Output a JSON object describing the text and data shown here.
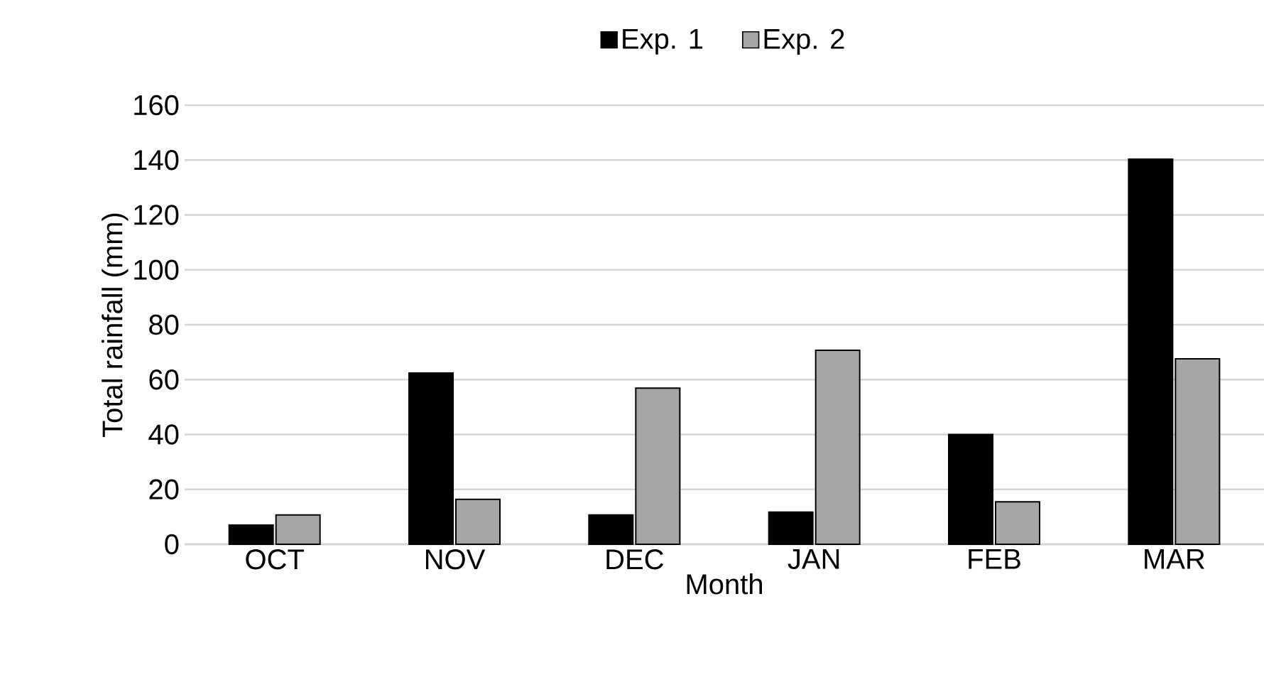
{
  "chart_data": {
    "type": "bar",
    "xlabel": "Month",
    "ylabel": "Total rainfall (mm)",
    "categories": [
      "OCT",
      "NOV",
      "DEC",
      "JAN",
      "FEB",
      "MAR"
    ],
    "series": [
      {
        "name": "Exp. 1",
        "color": "#000000",
        "values": [
          7,
          62.4,
          10.7,
          11.7,
          40,
          140.3
        ]
      },
      {
        "name": "Exp. 2",
        "color": "#a6a6a6",
        "values": [
          10.7,
          16.4,
          56.9,
          70.7,
          15.5,
          67.6
        ]
      }
    ],
    "ylim": [
      0,
      160
    ],
    "yticks": [
      0,
      20,
      40,
      60,
      80,
      100,
      120,
      140,
      160
    ],
    "grid": "y",
    "legend": "top"
  }
}
